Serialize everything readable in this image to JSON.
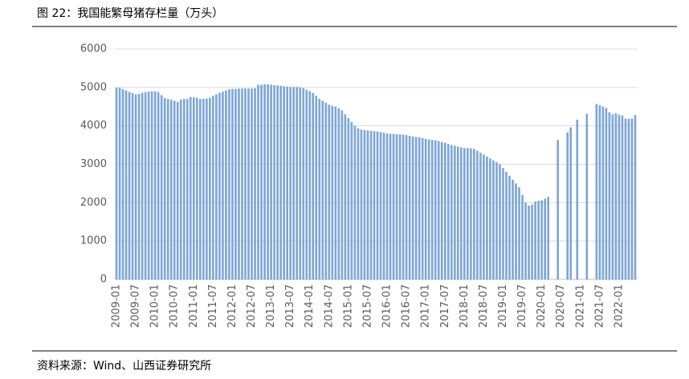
{
  "chart_data": {
    "type": "bar",
    "title": "图 22：我国能繁母猪存栏量（万头）",
    "source": "资料来源：Wind、山西证券研究所",
    "color": "#7ea6d6",
    "grid": true,
    "ylim": [
      0,
      6000
    ],
    "yticks": [
      0,
      1000,
      2000,
      3000,
      4000,
      5000,
      6000
    ],
    "categories": [
      "2009-01",
      null,
      null,
      null,
      null,
      null,
      "2009-07",
      null,
      null,
      null,
      null,
      null,
      "2010-01",
      null,
      null,
      null,
      null,
      null,
      "2010-07",
      null,
      null,
      null,
      null,
      null,
      "2011-01",
      null,
      null,
      null,
      null,
      null,
      "2011-07",
      null,
      null,
      null,
      null,
      null,
      "2012-01",
      null,
      null,
      null,
      null,
      null,
      "2012-07",
      null,
      null,
      null,
      null,
      null,
      "2013-01",
      null,
      null,
      null,
      null,
      null,
      "2013-07",
      null,
      null,
      null,
      null,
      null,
      "2014-01",
      null,
      null,
      null,
      null,
      null,
      "2014-07",
      null,
      null,
      null,
      null,
      null,
      "2015-01",
      null,
      null,
      null,
      null,
      null,
      "2015-07",
      null,
      null,
      null,
      null,
      null,
      "2016-01",
      null,
      null,
      null,
      null,
      null,
      "2016-07",
      null,
      null,
      null,
      null,
      null,
      "2017-01",
      null,
      null,
      null,
      null,
      null,
      "2017-07",
      null,
      null,
      null,
      null,
      null,
      "2018-01",
      null,
      null,
      null,
      null,
      null,
      "2018-07",
      null,
      null,
      null,
      null,
      null,
      "2019-01",
      null,
      null,
      null,
      null,
      null,
      "2019-07",
      null,
      null,
      null,
      null,
      null,
      "2020-01",
      null,
      null,
      null,
      null,
      null,
      "2020-07",
      null,
      null,
      null,
      null,
      null,
      "2021-01",
      null,
      null,
      null,
      null,
      null,
      "2021-07",
      null,
      null,
      null,
      null,
      null,
      "2022-01",
      null,
      null,
      null,
      null,
      null
    ],
    "values": [
      4990,
      4990,
      4950,
      4920,
      4880,
      4850,
      4820,
      4830,
      4860,
      4880,
      4890,
      4900,
      4900,
      4880,
      4800,
      4720,
      4700,
      4680,
      4650,
      4620,
      4680,
      4700,
      4700,
      4750,
      4740,
      4730,
      4700,
      4700,
      4710,
      4730,
      4780,
      4820,
      4860,
      4890,
      4920,
      4950,
      4960,
      4960,
      4970,
      4970,
      4970,
      4970,
      4970,
      4980,
      5070,
      5070,
      5080,
      5080,
      5070,
      5060,
      5050,
      5040,
      5030,
      5020,
      5010,
      5010,
      5010,
      5000,
      4980,
      4940,
      4900,
      4850,
      4780,
      4700,
      4650,
      4600,
      4550,
      4520,
      4500,
      4460,
      4400,
      4300,
      4200,
      4100,
      4000,
      3930,
      3900,
      3890,
      3880,
      3870,
      3860,
      3850,
      3840,
      3820,
      3800,
      3790,
      3790,
      3780,
      3780,
      3770,
      3760,
      3740,
      3720,
      3710,
      3700,
      3680,
      3660,
      3640,
      3630,
      3620,
      3600,
      3580,
      3560,
      3530,
      3500,
      3480,
      3460,
      3440,
      3420,
      3420,
      3410,
      3400,
      3350,
      3300,
      3250,
      3200,
      3150,
      3100,
      3050,
      3000,
      2900,
      2800,
      2700,
      2600,
      2500,
      2400,
      2200,
      2000,
      1920,
      1950,
      2030,
      2050,
      2060,
      2100,
      2150,
      null,
      null,
      3630,
      null,
      null,
      3830,
      3960,
      null,
      4160,
      null,
      null,
      4310,
      null,
      null,
      4570,
      4540,
      4500,
      4460,
      4350,
      4300,
      4330,
      4290,
      4270,
      4190,
      4180,
      4190,
      4280
    ]
  }
}
